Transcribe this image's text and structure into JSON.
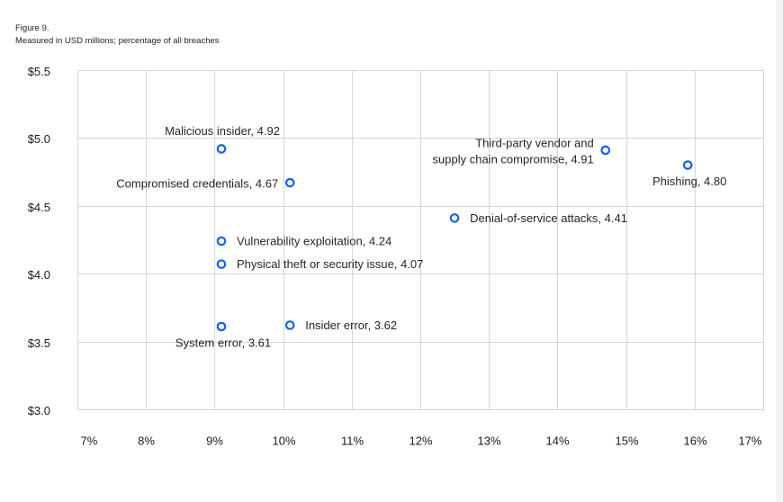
{
  "chart_data": {
    "type": "scatter",
    "title": "Figure 9.",
    "subtitle": "Measured in USD millions; percentage of all breaches",
    "xlim": [
      7,
      17
    ],
    "ylim": [
      3.0,
      5.5
    ],
    "grid": true,
    "marker_color": "#0f62fe",
    "x_ticks": [
      {
        "value": 7,
        "label": "7%"
      },
      {
        "value": 8,
        "label": "8%"
      },
      {
        "value": 9,
        "label": "9%"
      },
      {
        "value": 10,
        "label": "10%"
      },
      {
        "value": 11,
        "label": "11%"
      },
      {
        "value": 12,
        "label": "12%"
      },
      {
        "value": 13,
        "label": "13%"
      },
      {
        "value": 14,
        "label": "14%"
      },
      {
        "value": 15,
        "label": "15%"
      },
      {
        "value": 16,
        "label": "16%"
      },
      {
        "value": 17,
        "label": "17%"
      }
    ],
    "y_ticks": [
      {
        "value": 5.5,
        "label": "$5.5"
      },
      {
        "value": 5.0,
        "label": "$5.0"
      },
      {
        "value": 4.5,
        "label": "$4.5"
      },
      {
        "value": 4.0,
        "label": "$4.0"
      },
      {
        "value": 3.5,
        "label": "$3.5"
      },
      {
        "value": 3.0,
        "label": "$3.0"
      }
    ],
    "points": [
      {
        "x": 9.1,
        "y": 4.92,
        "label": [
          "Malicious insider, 4.92"
        ]
      },
      {
        "x": 14.7,
        "y": 4.91,
        "label": [
          "Third-party vendor and",
          "supply chain compromise, 4.91"
        ]
      },
      {
        "x": 15.9,
        "y": 4.8,
        "label": [
          "Phishing, 4.80"
        ]
      },
      {
        "x": 10.1,
        "y": 4.67,
        "label": [
          "Compromised credentials, 4.67"
        ]
      },
      {
        "x": 12.5,
        "y": 4.41,
        "label": [
          "Denial-of-service attacks, 4.41"
        ]
      },
      {
        "x": 9.1,
        "y": 4.24,
        "label": [
          "Vulnerability exploitation, 4.24"
        ]
      },
      {
        "x": 9.1,
        "y": 4.07,
        "label": [
          "Physical theft or security issue, 4.07"
        ]
      },
      {
        "x": 9.1,
        "y": 3.61,
        "label": [
          "System error, 3.61"
        ]
      },
      {
        "x": 10.1,
        "y": 3.62,
        "label": [
          "Insider error, 3.62"
        ]
      }
    ]
  }
}
